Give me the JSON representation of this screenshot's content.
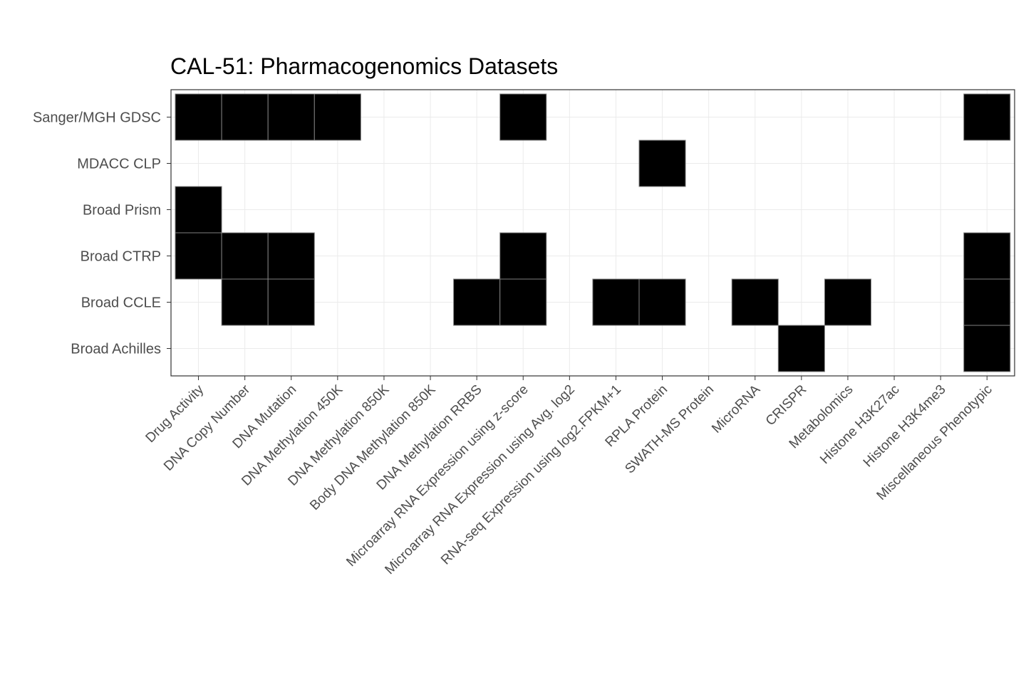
{
  "chart_data": {
    "type": "heatmap",
    "title": "CAL-51: Pharmacogenomics Datasets",
    "xlabel": "",
    "ylabel": "",
    "x_categories": [
      "Drug Activity",
      "DNA Copy Number",
      "DNA Mutation",
      "DNA Methylation 450K",
      "DNA Methylation 850K",
      "Body DNA Methylation 850K",
      "DNA Methylation RRBS",
      "Microarray RNA Expression using z-score",
      "Microarray RNA Expression using Avg. log2",
      "RNA-seq Expression using log2.FPKM+1",
      "RPLA Protein",
      "SWATH-MS Protein",
      "MicroRNA",
      "CRISPR",
      "Metabolomics",
      "Histone H3K27ac",
      "Histone H3K4me3",
      "Miscellaneous Phenotypic"
    ],
    "y_categories": [
      "Sanger/MGH GDSC",
      "MDACC CLP",
      "Broad Prism",
      "Broad CTRP",
      "Broad CCLE",
      "Broad Achilles"
    ],
    "presence": [
      [
        1,
        1,
        1,
        1,
        0,
        0,
        0,
        1,
        0,
        0,
        0,
        0,
        0,
        0,
        0,
        0,
        0,
        1
      ],
      [
        0,
        0,
        0,
        0,
        0,
        0,
        0,
        0,
        0,
        0,
        1,
        0,
        0,
        0,
        0,
        0,
        0,
        0
      ],
      [
        1,
        0,
        0,
        0,
        0,
        0,
        0,
        0,
        0,
        0,
        0,
        0,
        0,
        0,
        0,
        0,
        0,
        0
      ],
      [
        1,
        1,
        1,
        0,
        0,
        0,
        0,
        1,
        0,
        0,
        0,
        0,
        0,
        0,
        0,
        0,
        0,
        1
      ],
      [
        0,
        1,
        1,
        0,
        0,
        0,
        1,
        1,
        0,
        1,
        1,
        0,
        1,
        0,
        1,
        0,
        0,
        1
      ],
      [
        0,
        0,
        0,
        0,
        0,
        0,
        0,
        0,
        0,
        0,
        0,
        0,
        0,
        1,
        0,
        0,
        0,
        1
      ]
    ],
    "colors": {
      "present": "#000000",
      "absent": "#ffffff",
      "tile_border": "#808080",
      "grid": "#ebebeb"
    },
    "legend": "none",
    "grid": true
  }
}
